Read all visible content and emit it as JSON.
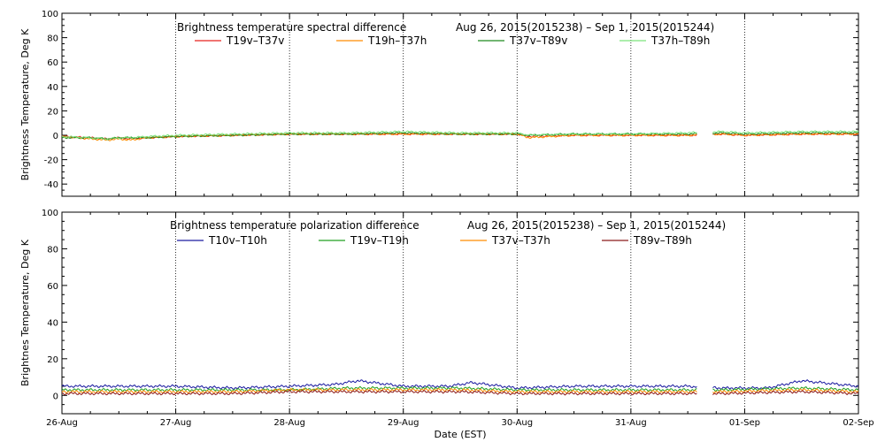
{
  "chart_data": [
    {
      "type": "line",
      "title": "Brightness temperature spectral difference",
      "date_range": "Aug 26, 2015(2015238) – Sep  1, 2015(2015244)",
      "ylabel": "Brightness Temperature, Deg K",
      "ylim": [
        -50,
        100
      ],
      "yticks": [
        -40,
        -20,
        0,
        20,
        40,
        60,
        80,
        100
      ],
      "xlim": [
        0,
        7
      ],
      "grid": "vertical dotted at day boundaries",
      "legend_position": "top",
      "data_gaps": [
        [
          5.58,
          5.72
        ]
      ],
      "series": [
        {
          "name": "T19v–T37v",
          "color": "#e8231e",
          "x": [
            0,
            0.25,
            0.4,
            0.5,
            0.6,
            0.75,
            1.0,
            1.5,
            2.0,
            2.5,
            3.0,
            3.5,
            4.0,
            4.1,
            4.5,
            5.0,
            5.5,
            5.8,
            6.0,
            6.5,
            7.0
          ],
          "y": [
            -1,
            -2,
            -3,
            -2,
            -3,
            -2,
            -1,
            0,
            1,
            1,
            1,
            1,
            1,
            -1,
            0,
            0,
            0,
            1,
            0,
            1,
            1
          ]
        },
        {
          "name": "T19h–T37h",
          "color": "#ff8c00",
          "x": [
            0,
            0.25,
            0.4,
            0.5,
            0.6,
            0.75,
            1.0,
            1.5,
            2.0,
            2.5,
            3.0,
            3.5,
            4.0,
            4.1,
            4.5,
            5.0,
            5.5,
            5.8,
            6.0,
            6.5,
            7.0
          ],
          "y": [
            -1,
            -3,
            -4,
            -3,
            -4,
            -2,
            -1,
            0,
            1,
            1,
            1,
            1,
            1,
            -2,
            0,
            0,
            0,
            1,
            0,
            1,
            1
          ]
        },
        {
          "name": "T37v–T89v",
          "color": "#1f8a1f",
          "x": [
            0,
            0.25,
            0.4,
            0.5,
            0.6,
            0.75,
            1.0,
            1.5,
            2.0,
            2.5,
            3.0,
            3.5,
            4.0,
            4.1,
            4.5,
            5.0,
            5.5,
            5.8,
            6.0,
            6.5,
            7.0
          ],
          "y": [
            -2,
            -2,
            -3,
            -2,
            -2,
            -2,
            -1,
            0,
            1,
            1,
            2,
            1,
            1,
            0,
            1,
            1,
            1,
            2,
            1,
            2,
            2
          ]
        },
        {
          "name": "T37h–T89h",
          "color": "#7ce37c",
          "x": [
            0,
            0.25,
            0.4,
            0.5,
            0.6,
            0.75,
            1.0,
            1.5,
            2.0,
            2.5,
            3.0,
            3.5,
            4.0,
            4.1,
            4.5,
            5.0,
            5.5,
            5.8,
            6.0,
            6.5,
            7.0
          ],
          "y": [
            -1,
            -2,
            -3,
            -2,
            -2,
            -1,
            0,
            1,
            2,
            2,
            3,
            2,
            2,
            0,
            1,
            1,
            2,
            3,
            2,
            3,
            3
          ]
        }
      ]
    },
    {
      "type": "line",
      "title": "Brightness temperature polarization difference",
      "date_range": "Aug 26, 2015(2015238) – Sep  1, 2015(2015244)",
      "ylabel": "Brightnes Temperature, Deg K",
      "xlabel": "Date (EST)",
      "ylim": [
        -10,
        100
      ],
      "yticks": [
        0,
        20,
        40,
        60,
        80,
        100
      ],
      "xlim": [
        0,
        7
      ],
      "categories": [
        "26-Aug",
        "27-Aug",
        "28-Aug",
        "29-Aug",
        "30-Aug",
        "31-Aug",
        "01-Sep",
        "02-Sep"
      ],
      "grid": "vertical dotted at day boundaries",
      "legend_position": "top",
      "data_gaps": [
        [
          5.58,
          5.72
        ]
      ],
      "series": [
        {
          "name": "T10v–T10h",
          "color": "#1a1aa0",
          "x": [
            0,
            0.5,
            1.0,
            1.5,
            2.0,
            2.4,
            2.6,
            3.0,
            3.4,
            3.6,
            4.0,
            4.5,
            5.0,
            5.5,
            5.8,
            6.2,
            6.5,
            7.0
          ],
          "y": [
            5,
            5,
            5,
            4,
            5,
            6,
            8,
            5,
            5,
            7,
            4,
            5,
            5,
            5,
            4,
            4,
            8,
            5
          ]
        },
        {
          "name": "T19v–T19h",
          "color": "#20a020",
          "x": [
            0,
            0.5,
            1.0,
            1.5,
            2.0,
            2.5,
            3.0,
            3.5,
            4.0,
            4.5,
            5.0,
            5.5,
            5.8,
            6.5,
            7.0
          ],
          "y": [
            3,
            3,
            3,
            3,
            3,
            4,
            4,
            4,
            3,
            3,
            3,
            3,
            3,
            4,
            3
          ]
        },
        {
          "name": "T37v–T37h",
          "color": "#ff8c00",
          "x": [
            0,
            0.5,
            1.0,
            1.5,
            2.0,
            2.5,
            3.0,
            3.5,
            4.0,
            4.5,
            5.0,
            5.5,
            5.8,
            6.5,
            7.0
          ],
          "y": [
            2,
            2,
            2,
            2,
            3,
            3,
            3,
            3,
            2,
            2,
            2,
            2,
            2,
            3,
            2
          ]
        },
        {
          "name": "T89v–T89h",
          "color": "#8b1a1a",
          "x": [
            0,
            0.5,
            1.0,
            1.5,
            2.0,
            2.5,
            3.0,
            3.5,
            4.0,
            4.5,
            5.0,
            5.5,
            5.8,
            6.5,
            7.0
          ],
          "y": [
            1,
            1,
            1,
            1,
            2,
            2,
            2,
            2,
            1,
            1,
            1,
            1,
            1,
            2,
            1
          ]
        }
      ]
    }
  ]
}
